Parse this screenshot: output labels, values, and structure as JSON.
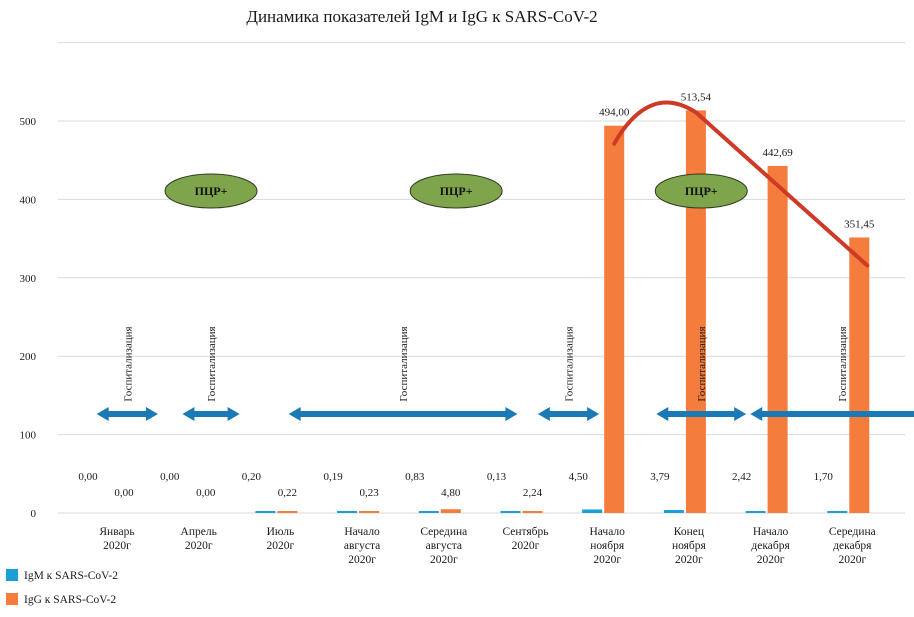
{
  "chart_data": {
    "type": "bar",
    "title": "Динамика показателей IgM и IgG к SARS-CoV-2",
    "categories": [
      [
        "Январь",
        "2020г"
      ],
      [
        "Апрель",
        "2020г"
      ],
      [
        "Июль",
        "2020г"
      ],
      [
        "Начало",
        "августа",
        "2020г"
      ],
      [
        "Середина",
        "августа",
        "2020г"
      ],
      [
        "Сентябрь",
        "2020г"
      ],
      [
        "Начало",
        "ноября",
        "2020г"
      ],
      [
        "Конец",
        "ноября",
        "2020г"
      ],
      [
        "Начало",
        "декабря",
        "2020г"
      ],
      [
        "Середина",
        "декабря",
        "2020г"
      ]
    ],
    "series": [
      {
        "name": "IgM к SARS-CoV-2",
        "color": "#1ba0d6",
        "values": [
          0.0,
          0.0,
          0.2,
          0.19,
          0.83,
          0.13,
          4.5,
          3.79,
          2.42,
          1.7
        ],
        "labels": [
          "0,00",
          "0,00",
          "0,20",
          "0,19",
          "0,83",
          "0,13",
          "4,50",
          "3,79",
          "2,42",
          "1,70"
        ]
      },
      {
        "name": "IgG к SARS-CoV-2",
        "color": "#f47c3c",
        "values": [
          0.0,
          0.0,
          0.22,
          0.23,
          4.8,
          2.24,
          494.0,
          513.54,
          442.69,
          351.45
        ],
        "labels": [
          "0,00",
          "0,00",
          "0,22",
          "0,23",
          "4,80",
          "2,24",
          "494,00",
          "513,54",
          "442,69",
          "351,45"
        ]
      }
    ],
    "ylim": [
      0,
      600
    ],
    "yticks": [
      0,
      100,
      200,
      300,
      400,
      500
    ],
    "grid": true,
    "legend": "bottom-left",
    "annotations": {
      "pcr": [
        {
          "text": "ПЦР+",
          "at_category": 1.2
        },
        {
          "text": "ПЦР+",
          "at_category": 4.2
        },
        {
          "text": "ПЦР+",
          "at_category": 7.2
        }
      ],
      "hospitalization": [
        {
          "text": "Госпитализация",
          "from": -0.2,
          "to": 0.55
        },
        {
          "text": "Госпитализация",
          "from": 0.85,
          "to": 1.55
        },
        {
          "text": "Госпитализация",
          "from": 2.15,
          "to": 4.95
        },
        {
          "text": "Госпитализация",
          "from": 5.2,
          "to": 5.95
        },
        {
          "text": "Госпитализация",
          "from": 6.65,
          "to": 7.75
        },
        {
          "text": "Госпитализация",
          "from": 7.8,
          "to": 10.05
        }
      ],
      "trend_line_color": "#cf3a26",
      "pcr_color": "#7ea44c",
      "arrow_color": "#1b79b5"
    }
  }
}
